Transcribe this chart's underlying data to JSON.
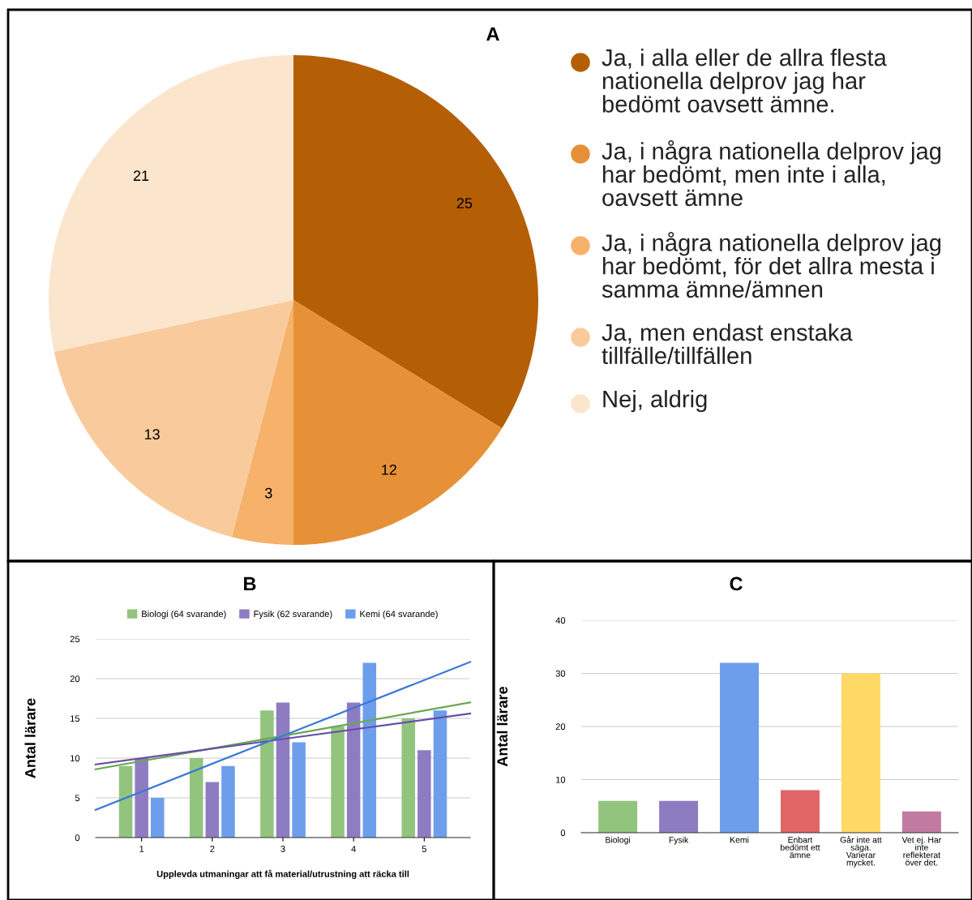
{
  "chart_data": [
    {
      "type": "pie",
      "title": "A",
      "categories": [
        "Ja, i alla eller de allra flesta nationella delprov jag har bedömt oavsett ämne.",
        "Ja, i några nationella delprov jag har bedömt, men inte i alla, oavsett ämne",
        "Ja, i några nationella delprov jag har bedömt, för det allra mesta i samma ämne/ämnen",
        "Ja, men endast enstaka tillfälle/tillfällen",
        "Nej, aldrig"
      ],
      "values": [
        25,
        12,
        3,
        13,
        21
      ],
      "colors": [
        "#b45f06",
        "#e69138",
        "#f6b26b",
        "#f9cb9c",
        "#fce5cd"
      ],
      "data_labels": true,
      "legend": "right"
    },
    {
      "type": "bar",
      "title": "B",
      "xlabel": "Upplevda utmaningar att få material/utrustning att räcka till",
      "ylabel": "Antal lärare",
      "x": [
        1,
        2,
        3,
        4,
        5
      ],
      "xlim": [
        0.35,
        5.65
      ],
      "xticks": [
        1,
        2,
        3,
        4,
        5
      ],
      "ylim": [
        0,
        25
      ],
      "yticks": [
        0,
        5,
        10,
        15,
        20,
        25
      ],
      "grid": "y",
      "legend": "top",
      "series": [
        {
          "name": "Biologi (64 svarande)",
          "color": "#93c47d",
          "values": [
            9,
            10,
            16,
            14,
            15
          ]
        },
        {
          "name": "Fysik (62 svarande)",
          "color": "#8e7cc3",
          "values": [
            10,
            7,
            17,
            17,
            11
          ]
        },
        {
          "name": "Kemi (64 svarande)",
          "color": "#6d9eeb",
          "values": [
            5,
            9,
            12,
            22,
            16
          ]
        },
        {
          "type": "line",
          "color": "#6aa84f",
          "x": [
            0.35,
            3,
            5.65
          ],
          "values": [
            8.6,
            12.8,
            17.0
          ]
        },
        {
          "type": "line",
          "color": "#674ea7",
          "x": [
            0.35,
            3,
            5.65
          ],
          "values": [
            9.2,
            12.4,
            15.6
          ]
        },
        {
          "type": "line",
          "color": "#3c78d8",
          "x": [
            0.35,
            3,
            5.65
          ],
          "values": [
            3.5,
            12.8,
            22.1
          ]
        }
      ]
    },
    {
      "type": "bar",
      "title": "C",
      "ylabel": "Antal lärare",
      "categories": [
        "Biologi",
        "Fysik",
        "Kemi",
        "Enbart bedömt ett ämne",
        "Går inte att säga. Varierar mycket.",
        "Vet ej. Har inte reflekterat över det."
      ],
      "values": [
        6,
        6,
        32,
        8,
        30,
        4
      ],
      "colors": [
        "#93c47d",
        "#8e7cc3",
        "#6d9eeb",
        "#e06666",
        "#ffd966",
        "#c27ba0"
      ],
      "ylim": [
        0,
        40
      ],
      "yticks": [
        0,
        10,
        20,
        30,
        40
      ],
      "grid": "y"
    }
  ]
}
